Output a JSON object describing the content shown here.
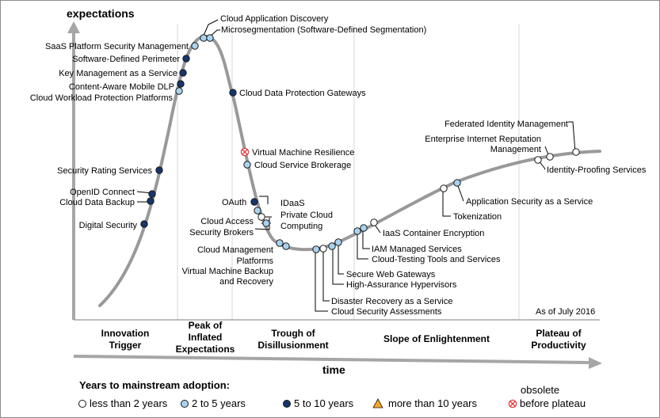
{
  "axes": {
    "y_title": "expectations",
    "x_title": "time"
  },
  "as_of": "As of July 2016",
  "phases": [
    {
      "lines": [
        "Innovation",
        "Trigger"
      ]
    },
    {
      "lines": [
        "Peak of",
        "Inflated",
        "Expectations"
      ]
    },
    {
      "lines": [
        "Trough of",
        "Disillusionment"
      ]
    },
    {
      "lines": [
        "Slope of Enlightenment"
      ]
    },
    {
      "lines": [
        "Plateau of",
        "Productivity"
      ]
    }
  ],
  "legend": {
    "title": "Years to mainstream adoption:",
    "obsolete_label": "obsolete",
    "items": [
      {
        "label": "less than 2 years",
        "color": "#ffffff"
      },
      {
        "label": "2 to 5 years",
        "color": "#a9d3ef"
      },
      {
        "label": "5 to 10 years",
        "color": "#17356b"
      },
      {
        "label": "more than 10 years",
        "color": "#f5a623"
      },
      {
        "label": "before plateau",
        "color": "#e03c3c"
      }
    ]
  },
  "technologies": [
    {
      "name": "Cloud Application Discovery",
      "status": "2 to 5 years"
    },
    {
      "name": "Microsegmentation (Software-Defined Segmentation)",
      "status": "2 to 5 years"
    },
    {
      "name": "SaaS Platform Security Management",
      "status": "2 to 5 years"
    },
    {
      "name": "Software-Defined Perimeter",
      "status": "5 to 10 years"
    },
    {
      "name": "Key Management as a Service",
      "status": "5 to 10 years"
    },
    {
      "name": "Content-Aware Mobile DLP",
      "status": "5 to 10 years"
    },
    {
      "name": "Cloud Workload Protection Platforms",
      "status": "2 to 5 years"
    },
    {
      "name": "Cloud Data Protection Gateways",
      "status": "5 to 10 years"
    },
    {
      "name": "Security Rating Services",
      "status": "5 to 10 years"
    },
    {
      "name": "OpenID Connect",
      "status": "5 to 10 years"
    },
    {
      "name": "Cloud Data Backup",
      "status": "5 to 10 years"
    },
    {
      "name": "Digital Security",
      "status": "5 to 10 years"
    },
    {
      "name": "Virtual Machine Resilience",
      "status": "obsolete before plateau"
    },
    {
      "name": "Cloud Service Brokerage",
      "status": "2 to 5 years"
    },
    {
      "name": "OAuth",
      "status": "5 to 10 years"
    },
    {
      "name": "IDaaS",
      "status": "2 to 5 years"
    },
    {
      "name": "Private Cloud Computing",
      "status": "less than 2 years"
    },
    {
      "name": "Cloud Access Security Brokers",
      "status": "2 to 5 years"
    },
    {
      "name": "Cloud Management Platforms",
      "status": "2 to 5 years"
    },
    {
      "name": "Virtual Machine Backup and Recovery",
      "status": "2 to 5 years"
    },
    {
      "name": "Disaster Recovery as a Service",
      "status": "2 to 5 years"
    },
    {
      "name": "Cloud Security Assessments",
      "status": "less than 2 years"
    },
    {
      "name": "Secure Web Gateways",
      "status": "2 to 5 years"
    },
    {
      "name": "High-Assurance Hypervisors",
      "status": "2 to 5 years"
    },
    {
      "name": "IAM Managed Services",
      "status": "2 to 5 years"
    },
    {
      "name": "Cloud-Testing Tools and Services",
      "status": "2 to 5 years"
    },
    {
      "name": "IaaS Container Encryption",
      "status": "less than 2 years"
    },
    {
      "name": "Tokenization",
      "status": "less than 2 years"
    },
    {
      "name": "Application Security as a Service",
      "status": "2 to 5 years"
    },
    {
      "name": "Federated Identity Management",
      "status": "less than 2 years"
    },
    {
      "name": "Enterprise Internet Reputation Management",
      "status": "less than 2 years"
    },
    {
      "name": "Identity-Proofing Services",
      "status": "less than 2 years"
    }
  ],
  "label_text": {
    "cloud_app_discovery": "Cloud Application Discovery",
    "microsegmentation": "Microsegmentation (Software-Defined Segmentation)",
    "saas_psm": "SaaS Platform Security Management",
    "sdp": "Software-Defined Perimeter",
    "kmaas": "Key Management as a Service",
    "cam_dlp": "Content-Aware Mobile DLP",
    "cwpp": "Cloud Workload Protection Platforms",
    "cdpg": "Cloud Data Protection Gateways",
    "srs": "Security Rating Services",
    "oidc": "OpenID Connect",
    "cdb": "Cloud Data Backup",
    "digsec": "Digital Security",
    "vmr": "Virtual Machine Resilience",
    "csb": "Cloud Service Brokerage",
    "oauth": "OAuth",
    "idaas": "IDaaS",
    "pcc_1": "Private Cloud",
    "pcc_2": "Computing",
    "casb_1": "Cloud Access",
    "casb_2": "Security Brokers",
    "cmp_1": "Cloud Management",
    "cmp_2": "Platforms",
    "vmbr_1": "Virtual Machine Backup",
    "vmbr_2": "and Recovery",
    "draas": "Disaster Recovery as a Service",
    "csa": "Cloud Security Assessments",
    "swg": "Secure Web Gateways",
    "hah": "High-Assurance Hypervisors",
    "iam": "IAM Managed Services",
    "ctts": "Cloud-Testing Tools and Services",
    "iaas_ce": "IaaS Container Encryption",
    "token": "Tokenization",
    "asaas": "Application Security as a Service",
    "fim": "Federated Identity Management",
    "eirm_1": "Enterprise Internet Reputation",
    "eirm_2": "Management",
    "ips": "Identity-Proofing Services"
  }
}
